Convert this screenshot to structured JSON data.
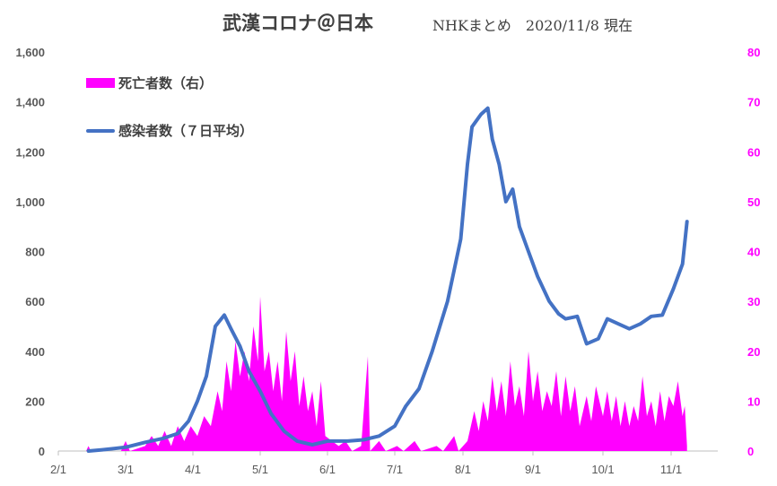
{
  "title": "武漢コロナ＠日本",
  "subtitle": "NHKまとめ　2020/11/8 現在",
  "legend": {
    "deaths": "死亡者数（右）",
    "cases": "感染者数（７日平均）"
  },
  "colors": {
    "deaths": "#ff00ff",
    "cases": "#4472c4",
    "axis_right": "#ff00ff",
    "axis_left": "#595959"
  },
  "chart_data": {
    "type": "area",
    "x_axis": {
      "ticks": [
        "2/1",
        "3/1",
        "4/1",
        "5/1",
        "6/1",
        "7/1",
        "8/1",
        "9/1",
        "10/1",
        "11/1"
      ],
      "range": [
        "2020-02-01",
        "2020-12-01"
      ]
    },
    "y_left": {
      "ticks": [
        "0",
        "200",
        "400",
        "600",
        "800",
        "1,000",
        "1,200",
        "1,400",
        "1,600"
      ],
      "range": [
        0,
        1600
      ]
    },
    "y_right": {
      "ticks": [
        "0",
        "10",
        "20",
        "30",
        "40",
        "50",
        "60",
        "70",
        "80"
      ],
      "range": [
        0,
        80
      ]
    },
    "series": [
      {
        "name": "感染者数（７日平均）",
        "axis": "left",
        "type": "line",
        "points": [
          [
            "2020-02-14",
            0
          ],
          [
            "2020-02-20",
            5
          ],
          [
            "2020-03-01",
            15
          ],
          [
            "2020-03-10",
            35
          ],
          [
            "2020-03-18",
            50
          ],
          [
            "2020-03-25",
            70
          ],
          [
            "2020-03-30",
            120
          ],
          [
            "2020-04-03",
            200
          ],
          [
            "2020-04-07",
            300
          ],
          [
            "2020-04-11",
            500
          ],
          [
            "2020-04-15",
            545
          ],
          [
            "2020-04-18",
            490
          ],
          [
            "2020-04-22",
            420
          ],
          [
            "2020-04-26",
            320
          ],
          [
            "2020-05-01",
            240
          ],
          [
            "2020-05-06",
            150
          ],
          [
            "2020-05-12",
            80
          ],
          [
            "2020-05-18",
            40
          ],
          [
            "2020-05-25",
            25
          ],
          [
            "2020-06-01",
            40
          ],
          [
            "2020-06-10",
            40
          ],
          [
            "2020-06-17",
            45
          ],
          [
            "2020-06-24",
            60
          ],
          [
            "2020-07-01",
            100
          ],
          [
            "2020-07-06",
            180
          ],
          [
            "2020-07-12",
            250
          ],
          [
            "2020-07-18",
            400
          ],
          [
            "2020-07-25",
            600
          ],
          [
            "2020-07-31",
            850
          ],
          [
            "2020-08-03",
            1150
          ],
          [
            "2020-08-05",
            1300
          ],
          [
            "2020-08-09",
            1350
          ],
          [
            "2020-08-12",
            1375
          ],
          [
            "2020-08-14",
            1250
          ],
          [
            "2020-08-17",
            1150
          ],
          [
            "2020-08-20",
            1000
          ],
          [
            "2020-08-23",
            1050
          ],
          [
            "2020-08-26",
            900
          ],
          [
            "2020-08-30",
            800
          ],
          [
            "2020-09-03",
            700
          ],
          [
            "2020-09-08",
            600
          ],
          [
            "2020-09-12",
            550
          ],
          [
            "2020-09-15",
            530
          ],
          [
            "2020-09-20",
            540
          ],
          [
            "2020-09-24",
            430
          ],
          [
            "2020-09-29",
            450
          ],
          [
            "2020-10-03",
            530
          ],
          [
            "2020-10-08",
            510
          ],
          [
            "2020-10-13",
            490
          ],
          [
            "2020-10-18",
            510
          ],
          [
            "2020-10-23",
            540
          ],
          [
            "2020-10-28",
            545
          ],
          [
            "2020-11-02",
            650
          ],
          [
            "2020-11-06",
            750
          ],
          [
            "2020-11-08",
            920
          ]
        ]
      },
      {
        "name": "死亡者数（右）",
        "axis": "right",
        "type": "area",
        "points": [
          [
            "2020-02-13",
            0
          ],
          [
            "2020-02-14",
            1
          ],
          [
            "2020-02-15",
            0
          ],
          [
            "2020-02-28",
            0
          ],
          [
            "2020-03-01",
            2
          ],
          [
            "2020-03-03",
            0
          ],
          [
            "2020-03-10",
            1
          ],
          [
            "2020-03-13",
            3
          ],
          [
            "2020-03-16",
            1
          ],
          [
            "2020-03-19",
            4
          ],
          [
            "2020-03-22",
            1
          ],
          [
            "2020-03-25",
            5
          ],
          [
            "2020-03-28",
            2
          ],
          [
            "2020-03-31",
            5
          ],
          [
            "2020-04-03",
            3
          ],
          [
            "2020-04-06",
            7
          ],
          [
            "2020-04-09",
            5
          ],
          [
            "2020-04-12",
            12
          ],
          [
            "2020-04-14",
            8
          ],
          [
            "2020-04-16",
            18
          ],
          [
            "2020-04-18",
            12
          ],
          [
            "2020-04-20",
            22
          ],
          [
            "2020-04-22",
            15
          ],
          [
            "2020-04-24",
            20
          ],
          [
            "2020-04-26",
            14
          ],
          [
            "2020-04-28",
            25
          ],
          [
            "2020-04-30",
            18
          ],
          [
            "2020-05-01",
            31
          ],
          [
            "2020-05-03",
            16
          ],
          [
            "2020-05-05",
            20
          ],
          [
            "2020-05-07",
            12
          ],
          [
            "2020-05-09",
            18
          ],
          [
            "2020-05-11",
            10
          ],
          [
            "2020-05-13",
            24
          ],
          [
            "2020-05-15",
            14
          ],
          [
            "2020-05-17",
            20
          ],
          [
            "2020-05-19",
            9
          ],
          [
            "2020-05-21",
            15
          ],
          [
            "2020-05-23",
            8
          ],
          [
            "2020-05-25",
            12
          ],
          [
            "2020-05-27",
            5
          ],
          [
            "2020-05-29",
            14
          ],
          [
            "2020-05-31",
            3
          ],
          [
            "2020-06-03",
            2
          ],
          [
            "2020-06-06",
            1
          ],
          [
            "2020-06-09",
            2
          ],
          [
            "2020-06-12",
            0
          ],
          [
            "2020-06-16",
            1
          ],
          [
            "2020-06-19",
            19
          ],
          [
            "2020-06-20",
            0
          ],
          [
            "2020-06-24",
            2
          ],
          [
            "2020-06-27",
            0
          ],
          [
            "2020-07-02",
            1
          ],
          [
            "2020-07-05",
            0
          ],
          [
            "2020-07-10",
            2
          ],
          [
            "2020-07-13",
            0
          ],
          [
            "2020-07-20",
            1
          ],
          [
            "2020-07-23",
            0
          ],
          [
            "2020-07-28",
            3
          ],
          [
            "2020-07-30",
            0
          ],
          [
            "2020-08-03",
            2
          ],
          [
            "2020-08-06",
            8
          ],
          [
            "2020-08-08",
            4
          ],
          [
            "2020-08-10",
            10
          ],
          [
            "2020-08-12",
            6
          ],
          [
            "2020-08-14",
            15
          ],
          [
            "2020-08-16",
            8
          ],
          [
            "2020-08-18",
            14
          ],
          [
            "2020-08-20",
            7
          ],
          [
            "2020-08-22",
            18
          ],
          [
            "2020-08-24",
            9
          ],
          [
            "2020-08-26",
            13
          ],
          [
            "2020-08-28",
            7
          ],
          [
            "2020-08-30",
            20
          ],
          [
            "2020-09-01",
            10
          ],
          [
            "2020-09-03",
            16
          ],
          [
            "2020-09-05",
            8
          ],
          [
            "2020-09-07",
            12
          ],
          [
            "2020-09-09",
            9
          ],
          [
            "2020-09-11",
            16
          ],
          [
            "2020-09-13",
            7
          ],
          [
            "2020-09-15",
            15
          ],
          [
            "2020-09-17",
            8
          ],
          [
            "2020-09-19",
            13
          ],
          [
            "2020-09-21",
            5
          ],
          [
            "2020-09-24",
            11
          ],
          [
            "2020-09-26",
            6
          ],
          [
            "2020-09-28",
            13
          ],
          [
            "2020-10-01",
            7
          ],
          [
            "2020-10-03",
            12
          ],
          [
            "2020-10-05",
            6
          ],
          [
            "2020-10-07",
            11
          ],
          [
            "2020-10-09",
            5
          ],
          [
            "2020-10-11",
            10
          ],
          [
            "2020-10-13",
            5
          ],
          [
            "2020-10-15",
            9
          ],
          [
            "2020-10-17",
            6
          ],
          [
            "2020-10-19",
            15
          ],
          [
            "2020-10-21",
            7
          ],
          [
            "2020-10-23",
            10
          ],
          [
            "2020-10-25",
            5
          ],
          [
            "2020-10-27",
            12
          ],
          [
            "2020-10-29",
            6
          ],
          [
            "2020-10-31",
            11
          ],
          [
            "2020-11-02",
            9
          ],
          [
            "2020-11-04",
            14
          ],
          [
            "2020-11-06",
            7
          ],
          [
            "2020-11-07",
            9
          ],
          [
            "2020-11-08",
            1
          ]
        ]
      }
    ],
    "grid": false,
    "legend_position": "top-left"
  }
}
